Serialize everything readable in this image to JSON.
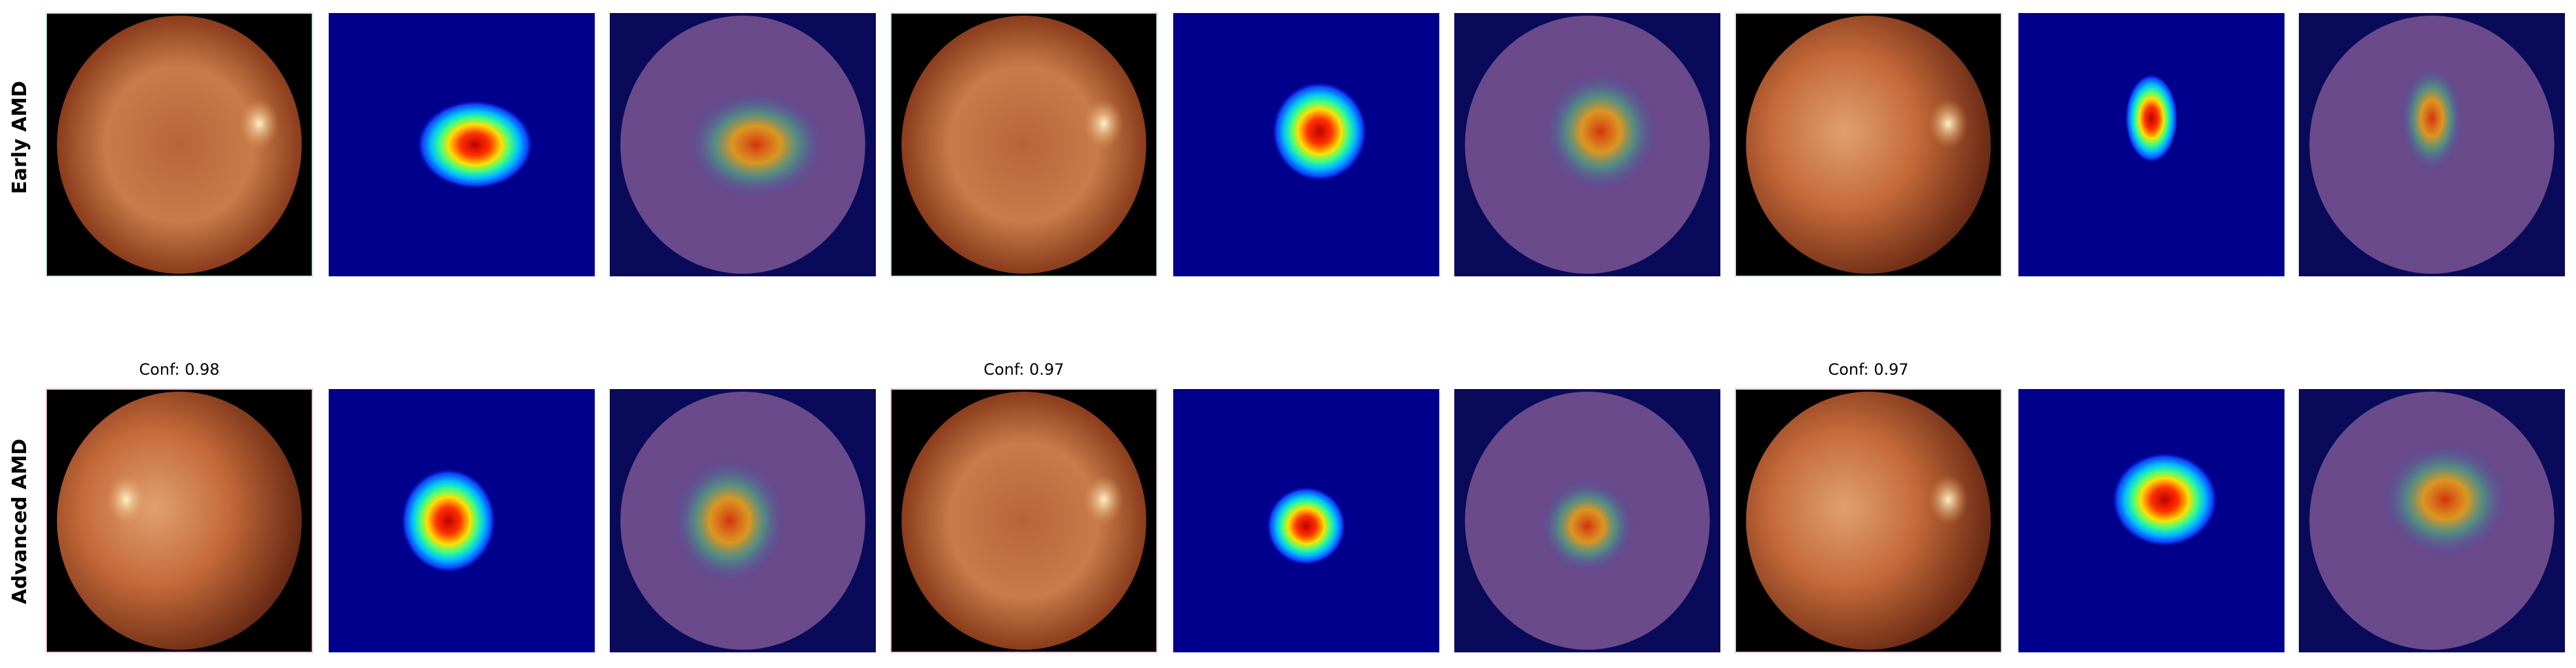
{
  "rows": [
    {
      "label": "Early AMD",
      "captions": []
    },
    {
      "label": "Advanced AMD",
      "captions": [
        "Conf: 0.98",
        "Conf: 0.97",
        "Conf: 0.97"
      ]
    }
  ]
}
